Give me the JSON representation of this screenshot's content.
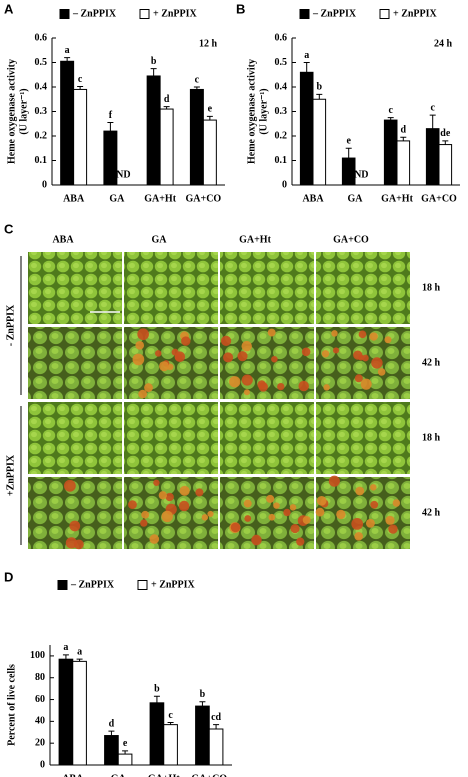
{
  "chart_data": [
    {
      "type": "bar",
      "panel": "A",
      "annotation": "12 h",
      "ylabel": [
        "Heme oxygenase activity",
        "(U layer⁻¹)"
      ],
      "categories": [
        "ABA",
        "GA",
        "GA+Ht",
        "GA+CO"
      ],
      "ylim": [
        0,
        0.6
      ],
      "yticks": [
        0,
        0.1,
        0.2,
        0.3,
        0.4,
        0.5,
        0.6
      ],
      "series": [
        {
          "name": "– ZnPPIX",
          "color": "#000000",
          "values": [
            0.505,
            0.22,
            0.445,
            0.39
          ],
          "errors": [
            0.015,
            0.035,
            0.03,
            0.01
          ],
          "letters": [
            "a",
            "f",
            "b",
            "c"
          ]
        },
        {
          "name": "+ ZnPPIX",
          "color": "#ffffff",
          "values": [
            0.39,
            null,
            0.31,
            0.265
          ],
          "errors": [
            0.012,
            null,
            0.01,
            0.015
          ],
          "letters": [
            "c",
            "ND",
            "d",
            "e"
          ]
        }
      ]
    },
    {
      "type": "bar",
      "panel": "B",
      "annotation": "24 h",
      "ylabel": [
        "Heme oxygenase activity",
        "(U layer⁻¹)"
      ],
      "categories": [
        "ABA",
        "GA",
        "GA+Ht",
        "GA+CO"
      ],
      "ylim": [
        0,
        0.6
      ],
      "yticks": [
        0,
        0.1,
        0.2,
        0.3,
        0.4,
        0.5,
        0.6
      ],
      "series": [
        {
          "name": "– ZnPPIX",
          "color": "#000000",
          "values": [
            0.46,
            0.11,
            0.265,
            0.23
          ],
          "errors": [
            0.04,
            0.04,
            0.01,
            0.055
          ],
          "letters": [
            "a",
            "e",
            "c",
            "c"
          ]
        },
        {
          "name": "+ ZnPPIX",
          "color": "#ffffff",
          "values": [
            0.35,
            null,
            0.18,
            0.165
          ],
          "errors": [
            0.02,
            null,
            0.015,
            0.015
          ],
          "letters": [
            "b",
            "ND",
            "d",
            "de"
          ]
        }
      ]
    },
    {
      "type": "bar",
      "panel": "D",
      "ylabel": [
        "Percent of live cells"
      ],
      "categories": [
        "ABA",
        "GA",
        "GA+Ht",
        "GA+CO"
      ],
      "ylim": [
        0,
        110
      ],
      "yticks": [
        0,
        20,
        40,
        60,
        80,
        100
      ],
      "series": [
        {
          "name": "– ZnPPIX",
          "color": "#000000",
          "values": [
            97,
            27,
            57,
            54
          ],
          "errors": [
            4,
            4,
            6,
            4
          ],
          "letters": [
            "a",
            "d",
            "b",
            "b"
          ]
        },
        {
          "name": "+ ZnPPIX",
          "color": "#ffffff",
          "values": [
            95,
            10,
            37,
            33
          ],
          "errors": [
            2,
            3,
            2,
            4
          ],
          "letters": [
            "a",
            "e",
            "c",
            "cd"
          ]
        }
      ]
    }
  ],
  "micrographs": {
    "panel": "C",
    "columns": [
      "ABA",
      "GA",
      "GA+Ht",
      "GA+CO"
    ],
    "groups": [
      "- ZnPPIX",
      "+ZnPPIX"
    ],
    "times": [
      "18 h",
      "42 h",
      "18 h",
      "42 h"
    ]
  }
}
